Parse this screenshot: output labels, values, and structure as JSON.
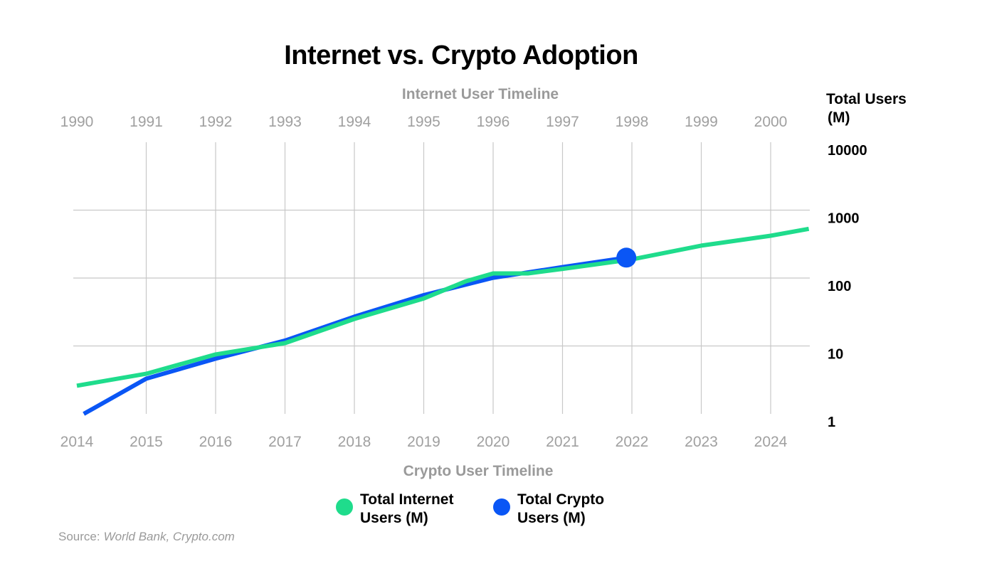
{
  "chart_data": {
    "type": "line",
    "title": "Internet vs. Crypto Adoption",
    "top_axis_title": "Internet User Timeline",
    "bottom_axis_title": "Crypto User Timeline",
    "y_title_line1": "Total Users",
    "y_title_line2": "(M)",
    "y_scale": "log",
    "ylim": [
      1,
      10000
    ],
    "y_ticks": [
      "10000",
      "1000",
      "100",
      "10",
      "1"
    ],
    "top_ticks": [
      "1990",
      "1991",
      "1992",
      "1993",
      "1994",
      "1995",
      "1996",
      "1997",
      "1998",
      "1999",
      "2000"
    ],
    "bottom_ticks": [
      "2014",
      "2015",
      "2016",
      "2017",
      "2018",
      "2019",
      "2020",
      "2021",
      "2022",
      "2023",
      "2024"
    ],
    "series": [
      {
        "name": "Total Internet Users (M)",
        "name_line1": "Total Internet",
        "name_line2": "Users (M)",
        "color": "#1fdc8c",
        "axis": "top",
        "x": [
          1990,
          1991,
          1992,
          1993,
          1994,
          1995,
          1995.6,
          1996,
          1996.5,
          1997,
          1998,
          1999,
          2000,
          2000.55
        ],
        "values": [
          2.6,
          3.9,
          7.5,
          11,
          25,
          50,
          89,
          117,
          117,
          136,
          188,
          300,
          420,
          530
        ]
      },
      {
        "name": "Total Crypto Users (M)",
        "name_line1": "Total Crypto",
        "name_line2": "Users (M)",
        "color": "#0a56f5",
        "axis": "bottom",
        "x": [
          2014.1,
          2015,
          2016,
          2017,
          2018,
          2019,
          2020,
          2021,
          2021.92
        ],
        "values": [
          1.0,
          3.3,
          6.5,
          12,
          27,
          56,
          101,
          145,
          200
        ],
        "endpoint_marker": true
      }
    ],
    "source_label": "Source:",
    "source_text": "World Bank, Crypto.com"
  }
}
